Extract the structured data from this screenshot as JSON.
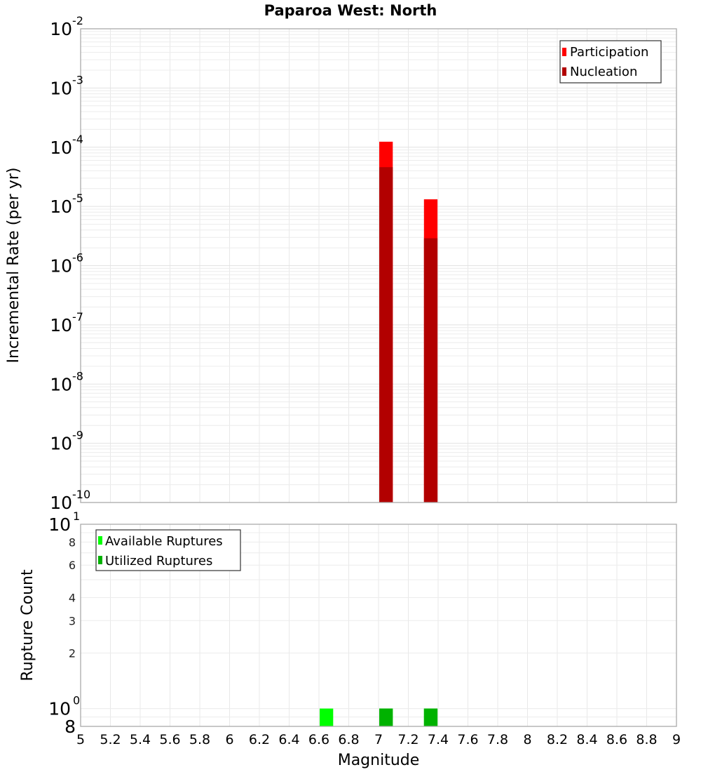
{
  "chart_data": [
    {
      "type": "bar",
      "title": "Paparoa West: North",
      "xlabel": "Magnitude",
      "ylabel": "Incremental Rate (per yr)",
      "yscale": "log",
      "ylim": [
        1e-10,
        0.01
      ],
      "xlim": [
        5,
        9
      ],
      "grid": true,
      "legend_position": "top-right",
      "y_ticks": [
        {
          "base": "10",
          "exp": "-2",
          "value": 0.01
        },
        {
          "base": "10",
          "exp": "-3",
          "value": 0.001
        },
        {
          "base": "10",
          "exp": "-4",
          "value": 0.0001
        },
        {
          "base": "10",
          "exp": "-5",
          "value": 1e-05
        },
        {
          "base": "10",
          "exp": "-6",
          "value": 1e-06
        },
        {
          "base": "10",
          "exp": "-7",
          "value": 1e-07
        },
        {
          "base": "10",
          "exp": "-8",
          "value": 1e-08
        },
        {
          "base": "10",
          "exp": "-9",
          "value": 1e-09
        },
        {
          "base": "10",
          "exp": "-10",
          "value": 1e-10
        }
      ],
      "bin_width": 0.1,
      "series": [
        {
          "name": "Participation",
          "color": "#ff0000",
          "x": [
            7.05,
            7.35
          ],
          "values": [
            0.000124,
            1.32e-05
          ]
        },
        {
          "name": "Nucleation",
          "color": "#b20000",
          "x": [
            7.05,
            7.35
          ],
          "values": [
            4.6e-05,
            2.9e-06
          ]
        }
      ]
    },
    {
      "type": "bar",
      "title": "",
      "xlabel": "Magnitude",
      "ylabel": "Rupture Count",
      "yscale": "log",
      "ylim": [
        0.8,
        10
      ],
      "xlim": [
        5,
        9
      ],
      "grid": true,
      "legend_position": "top-left",
      "y_ticks": [
        {
          "label": "10",
          "exp": "1",
          "value": 10,
          "major": true
        },
        {
          "label": "8",
          "value": 8,
          "major": false
        },
        {
          "label": "6",
          "value": 6,
          "major": false
        },
        {
          "label": "4",
          "value": 4,
          "major": false
        },
        {
          "label": "3",
          "value": 3,
          "major": false
        },
        {
          "label": "2",
          "value": 2,
          "major": false
        },
        {
          "label": "10",
          "exp": "0",
          "value": 1,
          "major": true
        },
        {
          "label": "8",
          "value": 0.8,
          "major": true
        }
      ],
      "bin_width": 0.1,
      "series": [
        {
          "name": "Available Ruptures",
          "color": "#00ff00",
          "x": [
            6.65,
            7.05,
            7.35
          ],
          "values": [
            1,
            1,
            1
          ]
        },
        {
          "name": "Utilized Ruptures",
          "color": "#00b200",
          "x": [
            7.05,
            7.35
          ],
          "values": [
            1,
            1
          ]
        }
      ]
    }
  ],
  "x_ticks": [
    "5",
    "5.2",
    "5.4",
    "5.6",
    "5.8",
    "6",
    "6.2",
    "6.4",
    "6.6",
    "6.8",
    "7",
    "7.2",
    "7.4",
    "7.6",
    "7.8",
    "8",
    "8.2",
    "8.4",
    "8.6",
    "8.8",
    "9"
  ],
  "labels": {
    "title": "Paparoa West: North",
    "top_ylabel": "Incremental Rate (per yr)",
    "bottom_ylabel": "Rupture Count",
    "xlabel": "Magnitude",
    "legend_top": [
      "Participation",
      "Nucleation"
    ],
    "legend_bottom": [
      "Available Ruptures",
      "Utilized Ruptures"
    ]
  }
}
